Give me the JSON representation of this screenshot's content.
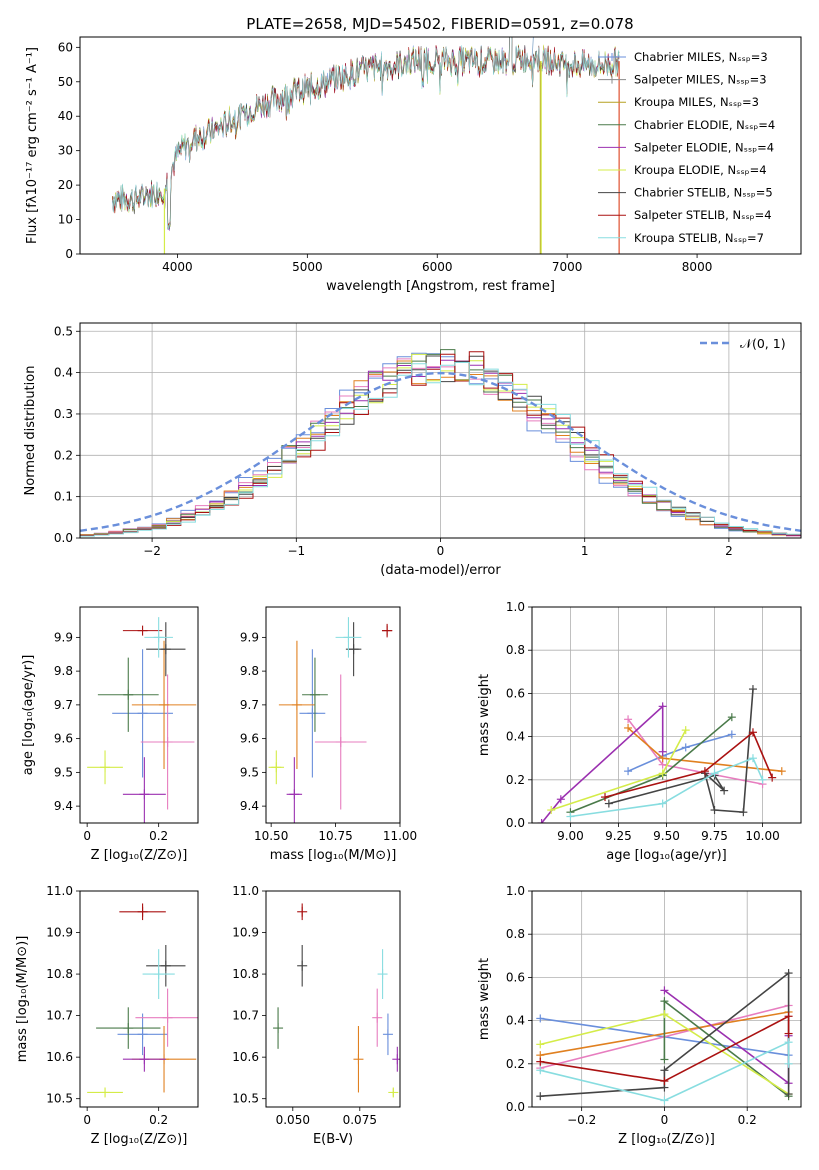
{
  "figure_title": "PLATE=2658, MJD=54502, FIBERID=0591, z=0.078",
  "colors": [
    "#6a8fdb",
    "#8a8a8a",
    "#b5a020",
    "#4a7a4a",
    "#9b30b0",
    "#d4ec48",
    "#444444",
    "#aa1111",
    "#88dde0"
  ],
  "chart_data": [
    {
      "id": "spectrum",
      "type": "line",
      "title": "PLATE=2658, MJD=54502, FIBERID=0591, z=0.078",
      "xlabel": "wavelength [Angstrom, rest frame]",
      "ylabel": "Flux [fλ10⁻¹⁷ erg cm⁻² s⁻¹ A⁻¹]",
      "xlim": [
        3250,
        8800
      ],
      "ylim": [
        0,
        63
      ],
      "xticks": [
        4000,
        5000,
        6000,
        7000,
        8000
      ],
      "yticks": [
        0,
        10,
        20,
        30,
        40,
        50,
        60
      ],
      "legend_position": "top-right",
      "series": [
        {
          "name": "Chabrier MILES, Nₛₛₚ=3",
          "color": "#6a8fdb",
          "marker": true
        },
        {
          "name": "Salpeter MILES, Nₛₛₚ=3",
          "color": "#8a8a8a",
          "marker": true
        },
        {
          "name": "Kroupa MILES, Nₛₛₚ=3",
          "color": "#b5a020",
          "marker": false
        },
        {
          "name": "Chabrier ELODIE, Nₛₛₚ=4",
          "color": "#4a7a4a",
          "marker": false
        },
        {
          "name": "Salpeter ELODIE, Nₛₛₚ=4",
          "color": "#9b30b0",
          "marker": false
        },
        {
          "name": "Kroupa ELODIE, Nₛₛₚ=4",
          "color": "#d4ec48",
          "marker": false
        },
        {
          "name": "Chabrier STELIB, Nₛₛₚ=5",
          "color": "#444444",
          "marker": false
        },
        {
          "name": "Salpeter STELIB, Nₛₛₚ=4",
          "color": "#aa1111",
          "marker": false
        },
        {
          "name": "Kroupa STELIB, Nₛₛₚ=7",
          "color": "#88dde0",
          "marker": false
        }
      ],
      "continuum": {
        "x": [
          3500,
          3700,
          3900,
          4000,
          4100,
          4300,
          4500,
          4700,
          4900,
          5100,
          5300,
          5500,
          5700,
          5900,
          6100,
          6300,
          6500,
          6700,
          6900,
          7100,
          7300,
          7400
        ],
        "y": [
          16,
          16,
          19,
          29,
          33,
          36,
          41,
          44,
          47,
          49,
          52,
          54,
          55,
          57,
          56,
          56,
          56,
          57,
          56,
          55,
          55,
          56
        ]
      },
      "cutoffs": {
        "kroupa_elodie_low": 3900,
        "salpeter_elodie_end": 6800,
        "salpeter_stelib_end": 7400
      }
    },
    {
      "id": "residuals",
      "type": "line",
      "xlabel": "(data-model)/error",
      "ylabel": "Normed distribution",
      "xlim": [
        -2.5,
        2.5
      ],
      "ylim": [
        0,
        0.52
      ],
      "xticks": [
        -2,
        -1,
        0,
        1,
        2
      ],
      "yticks": [
        0.0,
        0.1,
        0.2,
        0.3,
        0.4,
        0.5
      ],
      "grid": true,
      "legend_position": "top-right",
      "reference_curve": {
        "name": "𝒩(0, 1)",
        "mean": 0,
        "sigma": 1,
        "style": "dashed"
      }
    },
    {
      "id": "age_vs_Z",
      "type": "scatter",
      "xlabel": "Z [log₁₀(Z/Z⊙)]",
      "ylabel": "age  [log₁₀(age/yr)]",
      "xlim": [
        -0.02,
        0.31
      ],
      "ylim": [
        9.35,
        9.99
      ],
      "xticks": [
        0.0,
        0.2
      ],
      "yticks": [
        9.4,
        9.5,
        9.6,
        9.7,
        9.8,
        9.9
      ],
      "points": [
        {
          "x": 0.155,
          "y": 9.675,
          "xerr": 0.085,
          "yerr": 0.19,
          "color": "#6a8fdb"
        },
        {
          "x": 0.225,
          "y": 9.59,
          "xerr": 0.075,
          "yerr": 0.2,
          "color": "#e77dbf"
        },
        {
          "x": 0.215,
          "y": 9.7,
          "xerr": 0.09,
          "yerr": 0.19,
          "color": "#e08020"
        },
        {
          "x": 0.115,
          "y": 9.73,
          "xerr": 0.085,
          "yerr": 0.11,
          "color": "#4a7a4a"
        },
        {
          "x": 0.16,
          "y": 9.435,
          "xerr": 0.06,
          "yerr": 0.11,
          "color": "#9b30b0"
        },
        {
          "x": 0.05,
          "y": 9.515,
          "xerr": 0.05,
          "yerr": 0.05,
          "color": "#d4ec48"
        },
        {
          "x": 0.22,
          "y": 9.865,
          "xerr": 0.055,
          "yerr": 0.08,
          "color": "#444444"
        },
        {
          "x": 0.155,
          "y": 9.92,
          "xerr": 0.055,
          "yerr": 0.0,
          "color": "#aa1111"
        },
        {
          "x": 0.2,
          "y": 9.9,
          "xerr": 0.04,
          "yerr": 0.06,
          "color": "#88dde0"
        }
      ]
    },
    {
      "id": "age_vs_mass",
      "type": "scatter",
      "xlabel": "mass [log₁₀(M/M⊙)]",
      "xlim": [
        10.48,
        11.0
      ],
      "ylim": [
        9.35,
        9.99
      ],
      "xticks": [
        10.5,
        10.75,
        11.0
      ],
      "xtick_labels": [
        "10.50",
        "10.75",
        "11.00"
      ],
      "yticks": [
        9.4,
        9.5,
        9.6,
        9.7,
        9.8,
        9.9
      ],
      "points": [
        {
          "x": 10.66,
          "y": 9.675,
          "xerr": 0.05,
          "yerr": 0.19,
          "color": "#6a8fdb"
        },
        {
          "x": 10.77,
          "y": 9.59,
          "xerr": 0.1,
          "yerr": 0.2,
          "color": "#e77dbf"
        },
        {
          "x": 10.6,
          "y": 9.7,
          "xerr": 0.07,
          "yerr": 0.19,
          "color": "#e08020"
        },
        {
          "x": 10.67,
          "y": 9.73,
          "xerr": 0.05,
          "yerr": 0.11,
          "color": "#4a7a4a"
        },
        {
          "x": 10.59,
          "y": 9.435,
          "xerr": 0.03,
          "yerr": 0.11,
          "color": "#9b30b0"
        },
        {
          "x": 10.52,
          "y": 9.515,
          "xerr": 0.03,
          "yerr": 0.05,
          "color": "#d4ec48"
        },
        {
          "x": 10.82,
          "y": 9.865,
          "xerr": 0.03,
          "yerr": 0.08,
          "color": "#444444"
        },
        {
          "x": 10.95,
          "y": 9.92,
          "xerr": 0.02,
          "yerr": 0.02,
          "color": "#aa1111"
        },
        {
          "x": 10.8,
          "y": 9.9,
          "xerr": 0.05,
          "yerr": 0.06,
          "color": "#88dde0"
        }
      ]
    },
    {
      "id": "weights_vs_age",
      "type": "line",
      "xlabel": "age  [log₁₀(age/yr)]",
      "ylabel": "mass weight",
      "xlim": [
        8.8,
        10.2
      ],
      "ylim": [
        0,
        1
      ],
      "xticks": [
        9.0,
        9.25,
        9.5,
        9.75,
        10.0
      ],
      "xtick_labels": [
        "9.00",
        "9.25",
        "9.50",
        "9.75",
        "10.00"
      ],
      "yticks": [
        0.0,
        0.2,
        0.4,
        0.6,
        0.8,
        1.0
      ],
      "grid": true,
      "series": [
        {
          "color": "#6a8fdb",
          "x": [
            9.3,
            9.48,
            9.6,
            9.84
          ],
          "y": [
            0.24,
            0.31,
            0.35,
            0.41
          ]
        },
        {
          "color": "#e77dbf",
          "x": [
            9.3,
            9.48,
            10.0
          ],
          "y": [
            0.48,
            0.27,
            0.18
          ]
        },
        {
          "color": "#e08020",
          "x": [
            9.3,
            9.48,
            10.1
          ],
          "y": [
            0.44,
            0.3,
            0.24
          ]
        },
        {
          "color": "#4a7a4a",
          "x": [
            9.0,
            9.48,
            9.84
          ],
          "y": [
            0.05,
            0.22,
            0.49
          ]
        },
        {
          "color": "#9b30b0",
          "x": [
            8.85,
            8.95,
            9.48,
            9.48
          ],
          "y": [
            0.0,
            0.11,
            0.54,
            0.33
          ]
        },
        {
          "color": "#d4ec48",
          "x": [
            8.9,
            9.48,
            9.6
          ],
          "y": [
            0.06,
            0.23,
            0.43
          ]
        },
        {
          "color": "#444444",
          "x": [
            9.2,
            9.75,
            9.8,
            9.7,
            9.75,
            9.9,
            9.95
          ],
          "y": [
            0.09,
            0.22,
            0.15,
            0.23,
            0.06,
            0.05,
            0.62
          ]
        },
        {
          "color": "#aa1111",
          "x": [
            9.18,
            9.7,
            9.95,
            10.05
          ],
          "y": [
            0.12,
            0.24,
            0.42,
            0.21
          ]
        },
        {
          "color": "#88dde0",
          "x": [
            9.0,
            9.48,
            9.75,
            9.95,
            10.0
          ],
          "y": [
            0.03,
            0.09,
            0.23,
            0.3,
            0.2
          ]
        }
      ]
    },
    {
      "id": "mass_vs_Z",
      "type": "scatter",
      "xlabel": "Z [log₁₀(Z/Z⊙)]",
      "ylabel": "mass [log₁₀(M/M⊙)]",
      "xlim": [
        -0.02,
        0.31
      ],
      "ylim": [
        10.48,
        11.0
      ],
      "xticks": [
        0.0,
        0.2
      ],
      "yticks": [
        10.5,
        10.6,
        10.7,
        10.8,
        10.9,
        11.0
      ],
      "points": [
        {
          "x": 0.155,
          "y": 10.655,
          "xerr": 0.07,
          "yerr": 0.05,
          "color": "#6a8fdb"
        },
        {
          "x": 0.225,
          "y": 10.695,
          "xerr": 0.09,
          "yerr": 0.07,
          "color": "#e77dbf"
        },
        {
          "x": 0.215,
          "y": 10.595,
          "xerr": 0.09,
          "yerr": 0.08,
          "color": "#e08020"
        },
        {
          "x": 0.115,
          "y": 10.67,
          "xerr": 0.09,
          "yerr": 0.05,
          "color": "#4a7a4a"
        },
        {
          "x": 0.16,
          "y": 10.595,
          "xerr": 0.06,
          "yerr": 0.03,
          "color": "#9b30b0"
        },
        {
          "x": 0.05,
          "y": 10.515,
          "xerr": 0.05,
          "yerr": 0.01,
          "color": "#d4ec48"
        },
        {
          "x": 0.22,
          "y": 10.82,
          "xerr": 0.055,
          "yerr": 0.05,
          "color": "#444444"
        },
        {
          "x": 0.155,
          "y": 10.95,
          "xerr": 0.065,
          "yerr": 0.02,
          "color": "#aa1111"
        },
        {
          "x": 0.2,
          "y": 10.8,
          "xerr": 0.045,
          "yerr": 0.06,
          "color": "#88dde0"
        }
      ]
    },
    {
      "id": "mass_vs_EBV",
      "type": "scatter",
      "xlabel": "E(B-V)",
      "xlim": [
        0.04,
        0.09
      ],
      "ylim": [
        10.48,
        11.0
      ],
      "xticks": [
        0.05,
        0.075
      ],
      "xtick_labels": [
        "0.050",
        "0.075"
      ],
      "yticks": [
        10.5,
        10.6,
        10.7,
        10.8,
        10.9,
        11.0
      ],
      "points": [
        {
          "x": 0.0855,
          "y": 10.655,
          "xerr": 0,
          "yerr": 0.05,
          "color": "#6a8fdb"
        },
        {
          "x": 0.0815,
          "y": 10.695,
          "xerr": 0,
          "yerr": 0.07,
          "color": "#e77dbf"
        },
        {
          "x": 0.0745,
          "y": 10.595,
          "xerr": 0,
          "yerr": 0.08,
          "color": "#e08020"
        },
        {
          "x": 0.0445,
          "y": 10.67,
          "xerr": 0,
          "yerr": 0.05,
          "color": "#4a7a4a"
        },
        {
          "x": 0.089,
          "y": 10.595,
          "xerr": 0,
          "yerr": 0.03,
          "color": "#9b30b0"
        },
        {
          "x": 0.0875,
          "y": 10.515,
          "xerr": 0,
          "yerr": 0.01,
          "color": "#d4ec48"
        },
        {
          "x": 0.0535,
          "y": 10.82,
          "xerr": 0,
          "yerr": 0.05,
          "color": "#444444"
        },
        {
          "x": 0.0535,
          "y": 10.95,
          "xerr": 0,
          "yerr": 0.02,
          "color": "#aa1111"
        },
        {
          "x": 0.0835,
          "y": 10.8,
          "xerr": 0,
          "yerr": 0.06,
          "color": "#88dde0"
        }
      ]
    },
    {
      "id": "weights_vs_Z",
      "type": "line",
      "xlabel": "Z [log₁₀(Z/Z⊙)]",
      "ylabel": "mass weight",
      "xlim": [
        -0.32,
        0.33
      ],
      "ylim": [
        0,
        1
      ],
      "xticks": [
        -0.2,
        0.0,
        0.2
      ],
      "yticks": [
        0.0,
        0.2,
        0.4,
        0.6,
        0.8,
        1.0
      ],
      "grid": true,
      "series": [
        {
          "color": "#6a8fdb",
          "x": [
            -0.3,
            0.3
          ],
          "y": [
            0.41,
            0.24
          ]
        },
        {
          "color": "#e77dbf",
          "x": [
            -0.3,
            0.3
          ],
          "y": [
            0.18,
            0.47
          ]
        },
        {
          "color": "#e08020",
          "x": [
            -0.3,
            0.3
          ],
          "y": [
            0.24,
            0.44
          ]
        },
        {
          "color": "#4a7a4a",
          "x": [
            0.0,
            0.0,
            0.3
          ],
          "y": [
            0.22,
            0.49,
            0.05
          ]
        },
        {
          "color": "#9b30b0",
          "x": [
            0.0,
            0.3,
            0.3
          ],
          "y": [
            0.54,
            0.11,
            0.33
          ]
        },
        {
          "color": "#d4ec48",
          "x": [
            -0.3,
            0.0,
            0.3
          ],
          "y": [
            0.29,
            0.43,
            0.06
          ]
        },
        {
          "color": "#444444",
          "x": [
            -0.3,
            0.0,
            0.0,
            0.3,
            0.3
          ],
          "y": [
            0.05,
            0.09,
            0.17,
            0.62,
            0.06
          ]
        },
        {
          "color": "#aa1111",
          "x": [
            -0.3,
            0.0,
            0.3,
            0.3
          ],
          "y": [
            0.21,
            0.12,
            0.42,
            0.34
          ]
        },
        {
          "color": "#88dde0",
          "x": [
            -0.3,
            0.0,
            0.3,
            0.3
          ],
          "y": [
            0.17,
            0.03,
            0.3,
            0.2
          ]
        }
      ]
    }
  ]
}
